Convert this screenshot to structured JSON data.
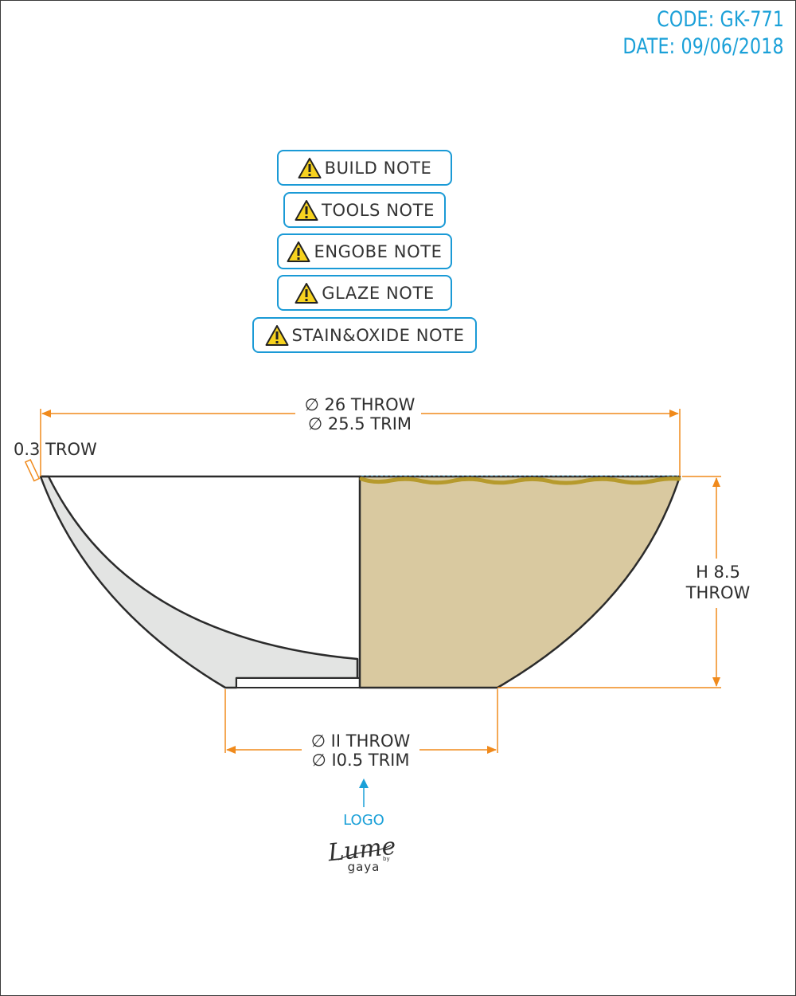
{
  "header": {
    "code": "CODE: GK-771",
    "date": "DATE: 09/06/2018"
  },
  "notes": [
    {
      "label": "BUILD NOTE",
      "icon": "warning-icon"
    },
    {
      "label": "TOOLS NOTE",
      "icon": "warning-icon"
    },
    {
      "label": "ENGOBE NOTE",
      "icon": "warning-icon"
    },
    {
      "label": "GLAZE NOTE",
      "icon": "warning-icon"
    },
    {
      "label": "STAIN&OXIDE NOTE",
      "icon": "warning-icon"
    }
  ],
  "dimensions": {
    "top_diameter": {
      "line1": "∅ 26 THROW",
      "line2": "∅ 25.5 TRIM"
    },
    "wall_thickness": "0.3 TROW",
    "height": {
      "line1": "H 8.5",
      "line2": "THROW"
    },
    "base_diameter": {
      "line1": "∅ II THROW",
      "line2": "∅ I0.5 TRIM"
    }
  },
  "logo": {
    "label": "LOGO",
    "brand_script": "Lume",
    "brand_by": "by",
    "brand_sub": "gaya"
  },
  "colors": {
    "accent": "#1aa0d8",
    "dimension": "#f08a1c",
    "clay_glaze": "#d9c9a0",
    "glaze_rim": "#b69a2c",
    "section_fill": "#e3e4e3",
    "outline": "#2b2b2b"
  }
}
